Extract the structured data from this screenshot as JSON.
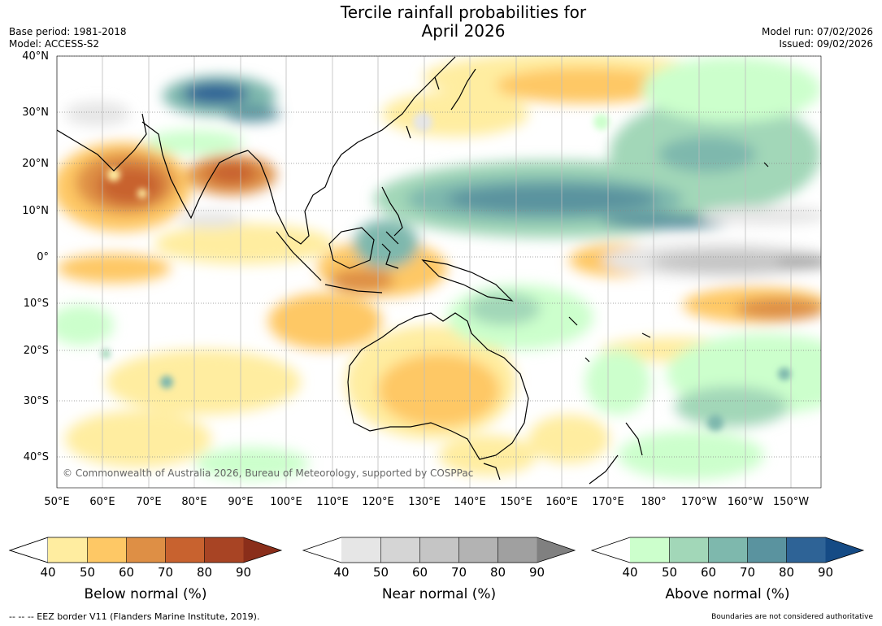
{
  "header": {
    "title_line1": "Tercile rainfall probabilities for",
    "title_line2": "April 2026",
    "base_period": "Base period: 1981-2018",
    "model": "Model: ACCESS-S2",
    "model_run": "Model run: 07/02/2026",
    "issued": "Issued: 09/02/2026"
  },
  "map": {
    "lat_labels": [
      "40°N",
      "30°N",
      "20°N",
      "10°N",
      "0°",
      "10°S",
      "20°S",
      "30°S",
      "40°S"
    ],
    "lon_labels": [
      "50°E",
      "60°E",
      "70°E",
      "80°E",
      "90°E",
      "100°E",
      "110°E",
      "120°E",
      "130°E",
      "140°E",
      "150°E",
      "160°E",
      "170°E",
      "180°",
      "170°W",
      "160°W",
      "150°W"
    ],
    "copyright": "© Commonwealth of Australia 2026, Bureau of Meteorology, supported by COSPPac"
  },
  "legends": [
    {
      "label": "Below normal (%)",
      "ticks": [
        "40",
        "50",
        "60",
        "70",
        "80",
        "90"
      ],
      "colors": [
        "#ffeda0",
        "#fec865",
        "#de8f45",
        "#c8622f",
        "#a84424",
        "#8a2e1a"
      ]
    },
    {
      "label": "Near normal (%)",
      "ticks": [
        "40",
        "50",
        "60",
        "70",
        "80",
        "90"
      ],
      "colors": [
        "#e6e6e6",
        "#d5d5d5",
        "#c5c5c5",
        "#b3b3b3",
        "#a0a0a0",
        "#808080"
      ]
    },
    {
      "label": "Above normal (%)",
      "ticks": [
        "40",
        "50",
        "60",
        "70",
        "80",
        "90"
      ],
      "colors": [
        "#ccffcc",
        "#a2d7b8",
        "#7eb8ad",
        "#5a939f",
        "#2e6396",
        "#154b85"
      ]
    }
  ],
  "footer": {
    "eez_note": "--  --  -- EEZ border V11 (Flanders Marine Institute, 2019).",
    "boundaries_note": "Boundaries are not considered authoritative"
  }
}
